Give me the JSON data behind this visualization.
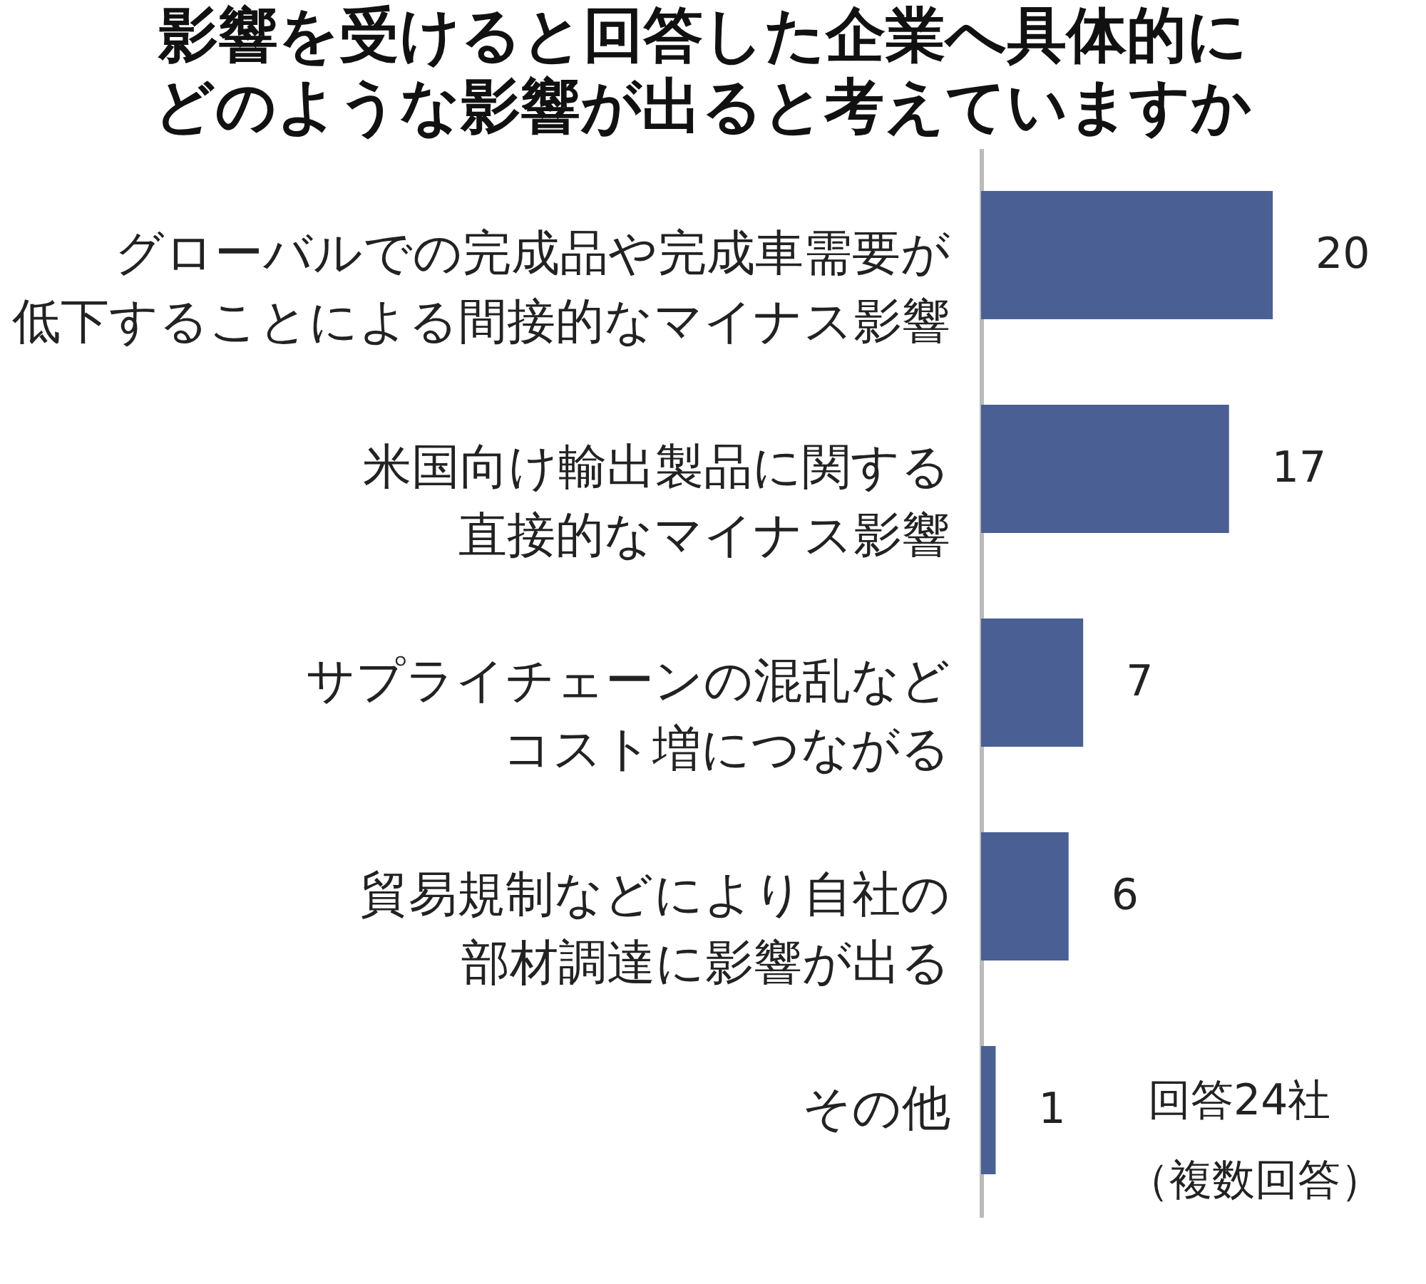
{
  "chart_data": {
    "type": "bar",
    "orientation": "horizontal",
    "title": "影響を受けると回答した企業へ具体的にどのような影響が出ると考えていますか",
    "categories": [
      "グローバルでの完成品や完成車需要が低下することによる間接的なマイナス影響",
      "米国向け輸出製品に関する直接的なマイナス影響",
      "サプライチェーンの混乱などコスト増につながる",
      "貿易規制などにより自社の部材調達に影響が出る",
      "その他"
    ],
    "values": [
      20,
      17,
      7,
      6,
      1
    ],
    "color": "#4a6095",
    "tick_labels": "y",
    "data_labels": true,
    "annotations": [
      "回答24社",
      "（複数回答）"
    ]
  }
}
